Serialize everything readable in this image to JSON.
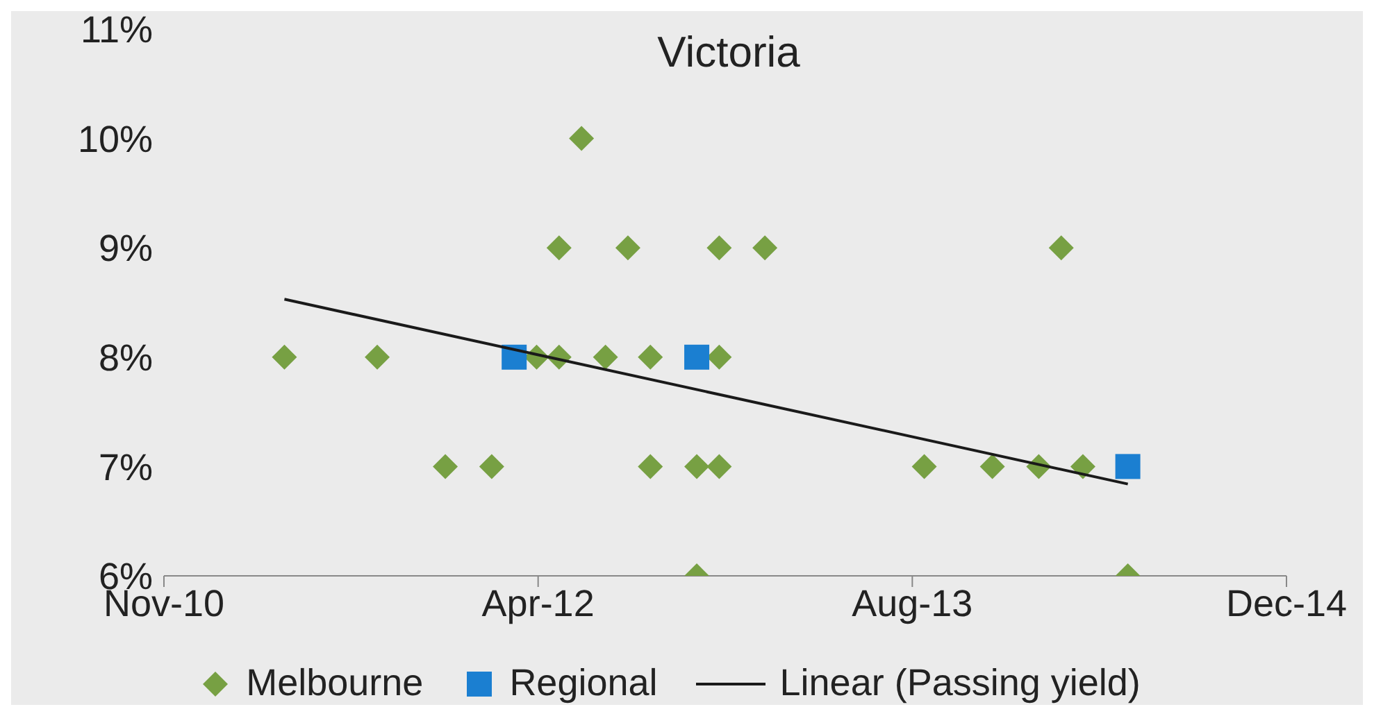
{
  "chart_data": {
    "type": "scatter",
    "title": "Victoria",
    "xlim": [
      "2010-11-20",
      "2014-12-29"
    ],
    "xticks": [
      {
        "value": "2010-11-20",
        "label": "Nov-10"
      },
      {
        "value": "2012-04-03",
        "label": "Apr-12"
      },
      {
        "value": "2013-08-16",
        "label": "Aug-13"
      },
      {
        "value": "2014-12-29",
        "label": "Dec-14"
      }
    ],
    "ylim": [
      6,
      11
    ],
    "yticks": [
      {
        "value": 6,
        "label": "6%"
      },
      {
        "value": 7,
        "label": "7%"
      },
      {
        "value": 8,
        "label": "8%"
      },
      {
        "value": 9,
        "label": "9%"
      },
      {
        "value": 10,
        "label": "10%"
      },
      {
        "value": 11,
        "label": "11%"
      }
    ],
    "grid": false,
    "legend": "bottom",
    "series": [
      {
        "name": "Melbourne",
        "marker": "diamond",
        "color": "#77a043",
        "x": [
          "2011-04-30",
          "2011-09-01",
          "2011-12-01",
          "2012-02-01",
          "2012-04-01",
          "2012-05-01",
          "2012-05-01",
          "2012-05-31",
          "2012-07-02",
          "2012-08-01",
          "2012-08-31",
          "2012-08-31",
          "2012-11-01",
          "2012-11-01",
          "2012-12-01",
          "2012-12-01",
          "2012-12-01",
          "2013-01-31",
          "2013-09-01",
          "2013-12-01",
          "2014-02-01",
          "2014-03-03",
          "2014-04-01",
          "2014-05-31"
        ],
        "values": [
          8,
          8,
          7,
          7,
          8,
          9,
          8,
          10,
          8,
          9,
          8,
          7,
          7,
          6,
          9,
          8,
          7,
          9,
          7,
          7,
          7,
          9,
          7,
          6
        ]
      },
      {
        "name": "Regional",
        "marker": "square",
        "color": "#1b7fd1",
        "x": [
          "2012-03-02",
          "2012-11-01",
          "2014-05-31"
        ],
        "values": [
          8,
          8,
          7
        ]
      },
      {
        "name": "Linear (Passing yield)",
        "type": "line",
        "marker": "none",
        "line_style": "solid",
        "color": "#1a1a1a",
        "x": [
          "2011-04-30",
          "2014-05-31"
        ],
        "values": [
          8.53,
          6.84
        ]
      }
    ]
  }
}
